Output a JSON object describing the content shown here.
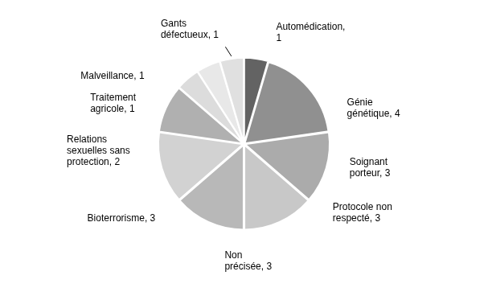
{
  "chart_data": {
    "type": "pie",
    "categories": [
      "Automédication,\n1",
      "Génie\ngénétique, 4",
      "Soignant\nporteur, 3",
      "Protocole non\nrespecté, 3",
      "Non\nprécisée, 3",
      "Bioterrorisme, 3",
      "Relations\nsexuelles sans\nprotection, 2",
      "Traitement\nagricole, 1",
      "Malveillance, 1",
      "Gants\ndéfectueux, 1"
    ],
    "values": [
      1,
      4,
      3,
      3,
      3,
      3,
      2,
      1,
      1,
      1
    ],
    "colors": [
      "#636363",
      "#909090",
      "#ababab",
      "#c8c8c8",
      "#b8b8b8",
      "#d2d2d2",
      "#b0b0b0",
      "#dcdcdc",
      "#e8e8e8",
      "#e0e0e0"
    ]
  }
}
